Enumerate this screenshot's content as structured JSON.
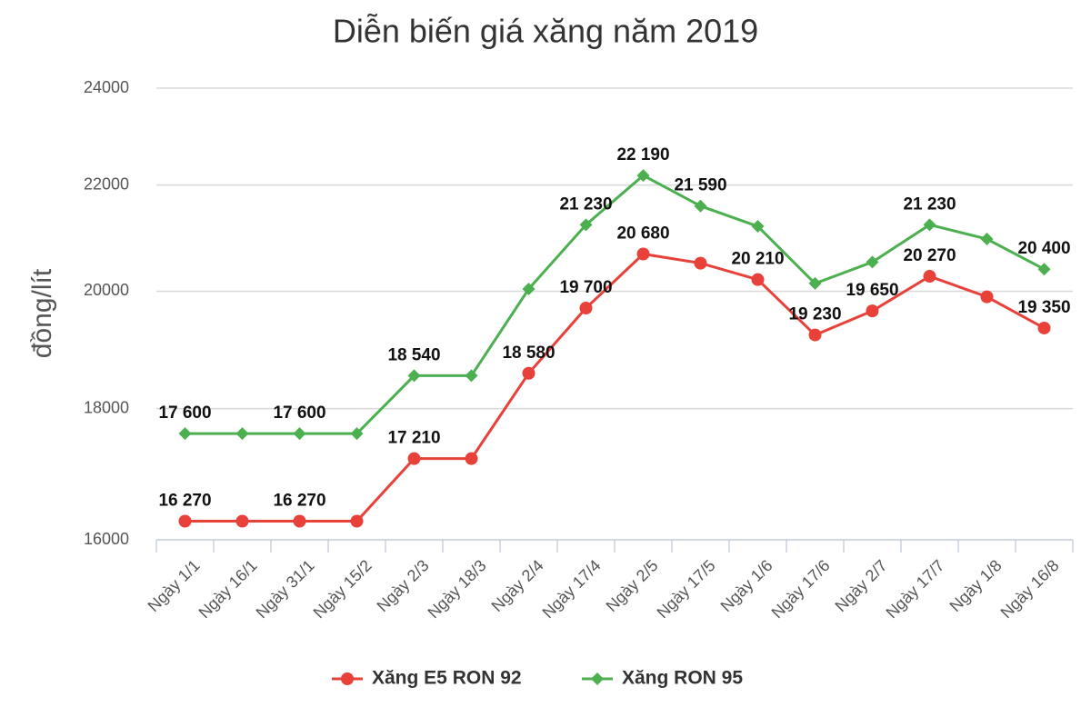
{
  "chart_data": {
    "type": "line",
    "title": "Diễn biến giá xăng năm 2019",
    "y_label": "đồng/lít",
    "categories": [
      "Ngày 1/1",
      "Ngày 16/1",
      "Ngày 31/1",
      "Ngày 15/2",
      "Ngày 2/3",
      "Ngày 18/3",
      "Ngày 2/4",
      "Ngày 17/4",
      "Ngày 2/5",
      "Ngày 17/5",
      "Ngày 1/6",
      "Ngày 17/6",
      "Ngày 2/7",
      "Ngày 17/7",
      "Ngày 1/8",
      "Ngày 16/8"
    ],
    "series": [
      {
        "name": "Xăng E5 RON 92",
        "color": "#e8413a",
        "marker": "circle",
        "values": [
          16270,
          16270,
          16270,
          16270,
          17210,
          17210,
          18580,
          19700,
          20680,
          20510,
          20210,
          19230,
          19650,
          20270,
          19900,
          19350
        ],
        "value_labels": [
          "16 270",
          null,
          "16 270",
          null,
          "17 210",
          null,
          "18 580",
          "19 700",
          "20 680",
          null,
          "20 210",
          "19 230",
          "19 650",
          "20 270",
          null,
          "19 350"
        ]
      },
      {
        "name": "Xăng RON 95",
        "color": "#4caf50",
        "marker": "diamond",
        "values": [
          17600,
          17600,
          17600,
          17600,
          18540,
          18540,
          20040,
          21230,
          22190,
          21590,
          21200,
          20140,
          20530,
          21230,
          20960,
          20400
        ],
        "value_labels": [
          "17 600",
          null,
          "17 600",
          null,
          "18 540",
          null,
          null,
          "21 230",
          "22 190",
          "21 590",
          null,
          null,
          null,
          "21 230",
          null,
          "20 400"
        ]
      }
    ],
    "ylim": [
      16000,
      24000
    ],
    "yticks": [
      16000,
      18000,
      20000,
      22000,
      24000
    ],
    "log_scale": true,
    "grid": true,
    "legend": "bottom"
  }
}
